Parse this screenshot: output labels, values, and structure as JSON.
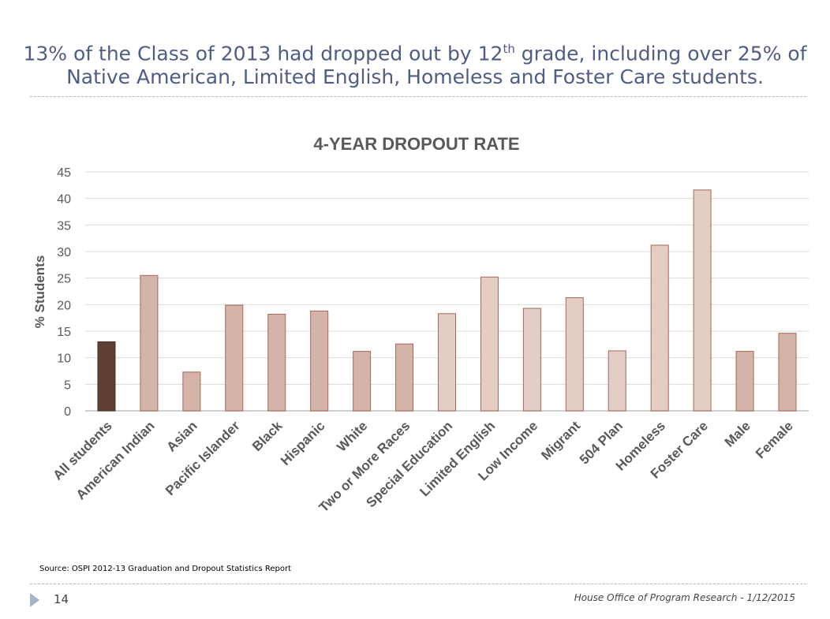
{
  "headline": {
    "line1_pre": "13% of the Class of 2013 had dropped out by 12",
    "line1_sup": "th",
    "line1_post": " grade, including over 25% of",
    "line2": "Native American, Limited English, Homeless and Foster Care students."
  },
  "chart_data": {
    "type": "bar",
    "title": "4-YEAR DROPOUT RATE",
    "xlabel": "",
    "ylabel": "% Students",
    "ylim": [
      0,
      45
    ],
    "yticks": [
      0,
      5,
      10,
      15,
      20,
      25,
      30,
      35,
      40,
      45
    ],
    "grid": true,
    "categories": [
      "All students",
      "American Indian",
      "Asian",
      "Pacific Islander",
      "Black",
      "Hispanic",
      "White",
      "Two or More Races",
      "Special Education",
      "Limited English",
      "Low Income",
      "Migrant",
      "504 Plan",
      "Homeless",
      "Foster Care",
      "Male",
      "Female"
    ],
    "values": [
      13.0,
      25.5,
      7.3,
      19.9,
      18.2,
      18.8,
      11.2,
      12.6,
      18.3,
      25.2,
      19.3,
      21.3,
      11.3,
      31.2,
      41.6,
      11.2,
      14.6
    ],
    "bar_colors": [
      "#5f3f33",
      "#d4b3a9",
      "#d4b3a9",
      "#d4b3a9",
      "#d4b3a9",
      "#d4b3a9",
      "#d4b3a9",
      "#d4b3a9",
      "#e3cdc5",
      "#e3cdc5",
      "#e3cdc5",
      "#e3cdc5",
      "#e3cdc5",
      "#e3cdc5",
      "#e3cdc5",
      "#d4b3a9",
      "#d4b3a9"
    ],
    "bar_border": "#a8665a"
  },
  "source": "Source:  OSPI 2012-13 Graduation and Dropout Statistics Report",
  "page_number": "14",
  "footer": "House Office of Program Research - 1/12/2015"
}
